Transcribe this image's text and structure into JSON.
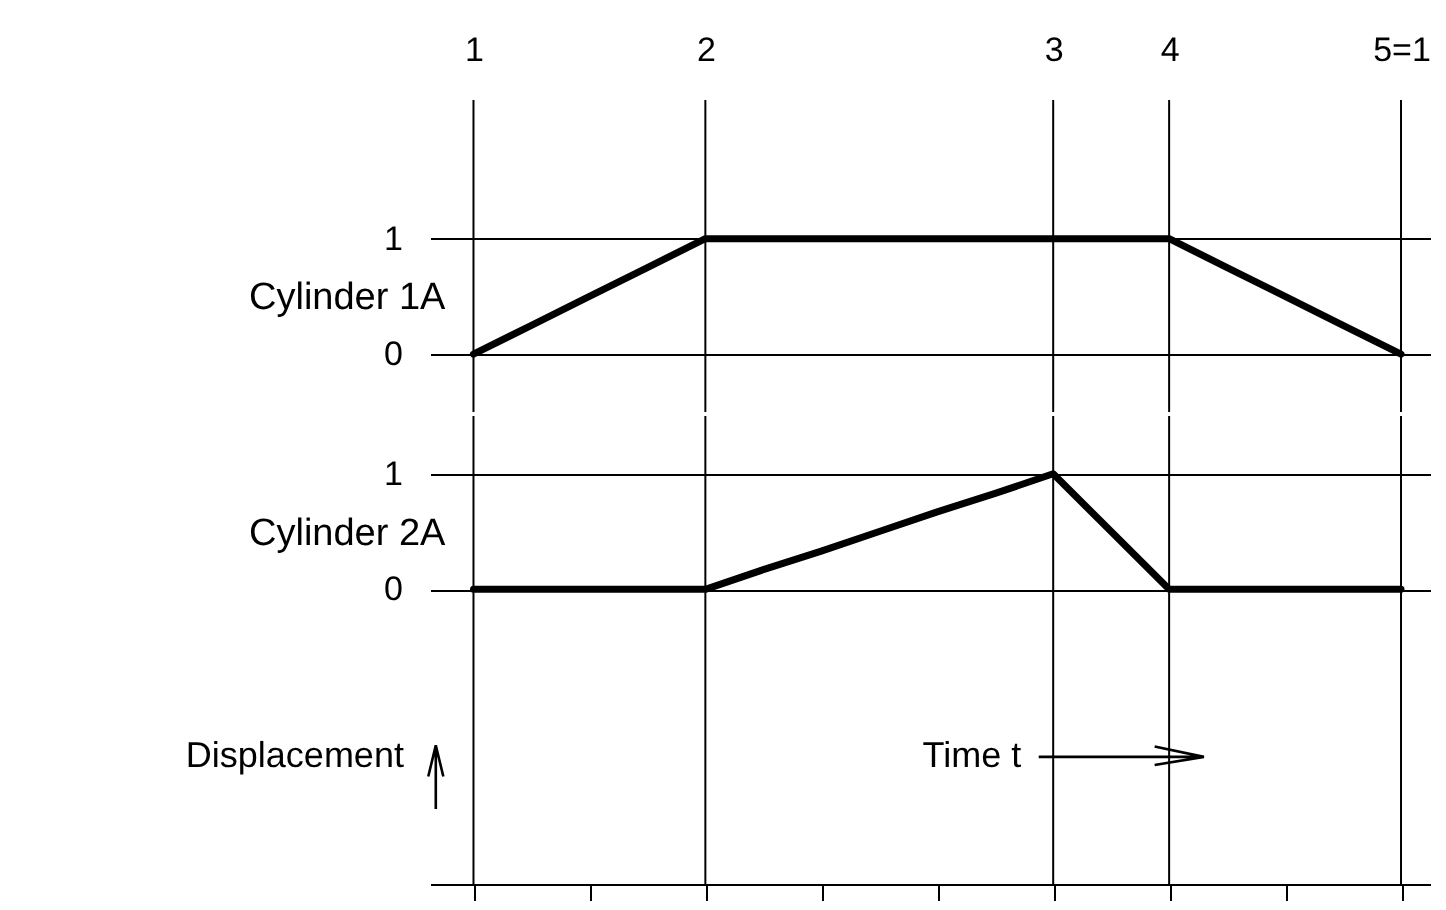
{
  "chart_data": [
    {
      "type": "line",
      "ylabel": "Cylinder 1A",
      "categories": [
        "1",
        null,
        null,
        null,
        "2",
        null,
        null,
        null,
        null,
        null,
        "3",
        null,
        "4",
        null,
        null,
        null,
        "5=1"
      ],
      "ylim": [
        -0.5,
        2.2
      ],
      "yticks": [
        0,
        1
      ],
      "series": [
        {
          "color": "#000000",
          "values": [
            0,
            0.25,
            0.5,
            0.75,
            1,
            1,
            1,
            1,
            1,
            1,
            1,
            1,
            1,
            0.75,
            0.5,
            0.25,
            0
          ]
        }
      ],
      "ref_lines": [
        {
          "axis": "x",
          "value": "1"
        },
        {
          "axis": "x",
          "value": "2"
        },
        {
          "axis": "x",
          "value": "3"
        },
        {
          "axis": "x",
          "value": "4"
        },
        {
          "axis": "x",
          "value": "5=1"
        }
      ],
      "grid": "y",
      "line_style": "solid",
      "marker": "none"
    },
    {
      "type": "line",
      "ylabel": "Cylinder 2A",
      "categories": [
        "1",
        null,
        null,
        null,
        "2",
        null,
        null,
        null,
        null,
        null,
        "3",
        null,
        "4",
        null,
        null,
        null,
        "5=1"
      ],
      "ylim": [
        -2.55,
        1.5
      ],
      "yticks": [
        0,
        1
      ],
      "tick_labels": "y",
      "series": [
        {
          "color": "#000000",
          "values": [
            0,
            0,
            0,
            0,
            0,
            0.17,
            0.33,
            0.5,
            0.67,
            0.83,
            1,
            0.5,
            0,
            0,
            0,
            0,
            0
          ]
        }
      ],
      "ref_lines": [
        {
          "axis": "x",
          "value": "1"
        },
        {
          "axis": "x",
          "value": "2"
        },
        {
          "axis": "x",
          "value": "3"
        },
        {
          "axis": "x",
          "value": "4"
        },
        {
          "axis": "x",
          "value": "5=1"
        }
      ],
      "annotations": [
        "Displacement",
        "Time  t"
      ],
      "grid": "y",
      "line_style": "solid",
      "marker": "none"
    }
  ]
}
